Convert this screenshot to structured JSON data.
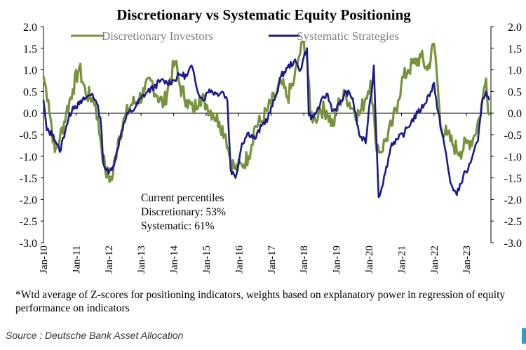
{
  "chart_data": {
    "type": "line",
    "title": "Discretionary  vs Systematic Equity Positioning",
    "ylim": [
      -3.0,
      2.0
    ],
    "yticks": [
      "2.0",
      "1.5",
      "1.0",
      "0.5",
      "0.0",
      "-0.5",
      "-1.0",
      "-1.5",
      "-2.0",
      "-2.5",
      "-3.0"
    ],
    "ytick_values": [
      2.0,
      1.5,
      1.0,
      0.5,
      0.0,
      -0.5,
      -1.0,
      -1.5,
      -2.0,
      -2.5,
      -3.0
    ],
    "x_start": 2010.0,
    "x_end": 2023.75,
    "xticks": [
      "Jan-10",
      "Jan-11",
      "Jan-12",
      "Jan-13",
      "Jan-14",
      "Jan-15",
      "Jan-16",
      "Jan-17",
      "Jan-18",
      "Jan-19",
      "Jan-20",
      "Jan-21",
      "Jan-22",
      "Jan-23"
    ],
    "xtick_values": [
      2010,
      2011,
      2012,
      2013,
      2014,
      2015,
      2016,
      2017,
      2018,
      2019,
      2020,
      2021,
      2022,
      2023
    ],
    "legend_position": "top",
    "grid": false,
    "series": [
      {
        "name": "Discretionary Investors",
        "color": "#77933c",
        "x": [
          2010.0,
          2010.15,
          2010.35,
          2010.5,
          2010.7,
          2010.9,
          2011.1,
          2011.3,
          2011.5,
          2011.6,
          2011.75,
          2011.9,
          2012.1,
          2012.3,
          2012.5,
          2012.7,
          2012.9,
          2013.1,
          2013.3,
          2013.5,
          2013.7,
          2013.9,
          2014.05,
          2014.2,
          2014.4,
          2014.6,
          2014.8,
          2015.0,
          2015.2,
          2015.4,
          2015.6,
          2015.75,
          2015.9,
          2016.1,
          2016.3,
          2016.5,
          2016.7,
          2016.9,
          2017.1,
          2017.3,
          2017.5,
          2017.7,
          2017.85,
          2018.0,
          2018.1,
          2018.2,
          2018.35,
          2018.5,
          2018.7,
          2018.9,
          2019.1,
          2019.3,
          2019.5,
          2019.7,
          2019.9,
          2020.05,
          2020.2,
          2020.35,
          2020.5,
          2020.7,
          2020.9,
          2021.0,
          2021.2,
          2021.4,
          2021.6,
          2021.8,
          2022.0,
          2022.05,
          2022.2,
          2022.4,
          2022.6,
          2022.8,
          2023.0,
          2023.2,
          2023.4,
          2023.5,
          2023.6,
          2023.7
        ],
        "values": [
          0.85,
          0.3,
          -0.9,
          -0.6,
          0.0,
          0.55,
          1.05,
          0.45,
          0.35,
          0.2,
          -0.6,
          -1.35,
          -1.55,
          -0.6,
          -0.1,
          0.2,
          0.3,
          0.5,
          0.75,
          0.4,
          0.2,
          0.8,
          1.2,
          0.6,
          0.3,
          0.05,
          0.4,
          0.2,
          0.0,
          -0.2,
          -0.5,
          -1.1,
          -1.3,
          -1.2,
          -1.0,
          -0.3,
          -0.2,
          0.1,
          0.35,
          0.7,
          0.35,
          0.75,
          1.3,
          1.65,
          1.3,
          0.0,
          -0.15,
          0.1,
          0.05,
          -0.3,
          0.3,
          0.4,
          0.1,
          -0.05,
          0.35,
          0.75,
          -0.6,
          -0.9,
          -0.65,
          -0.3,
          0.3,
          0.7,
          1.0,
          1.15,
          1.3,
          1.0,
          1.6,
          1.3,
          -0.3,
          -0.5,
          -0.75,
          -0.9,
          -0.7,
          -0.6,
          -0.1,
          0.35,
          0.8,
          -0.05
        ]
      },
      {
        "name": "Systematic Strategies",
        "color": "#1a1a8c",
        "x": [
          2010.0,
          2010.1,
          2010.3,
          2010.5,
          2010.7,
          2010.9,
          2011.1,
          2011.3,
          2011.5,
          2011.6,
          2011.75,
          2011.85,
          2012.0,
          2012.2,
          2012.4,
          2012.6,
          2012.8,
          2013.0,
          2013.2,
          2013.4,
          2013.6,
          2013.8,
          2014.0,
          2014.2,
          2014.4,
          2014.55,
          2014.7,
          2014.9,
          2015.1,
          2015.3,
          2015.5,
          2015.65,
          2015.75,
          2015.9,
          2016.1,
          2016.3,
          2016.5,
          2016.7,
          2016.9,
          2017.1,
          2017.3,
          2017.5,
          2017.7,
          2017.9,
          2018.0,
          2018.1,
          2018.15,
          2018.3,
          2018.5,
          2018.7,
          2018.9,
          2019.1,
          2019.3,
          2019.5,
          2019.7,
          2019.9,
          2020.0,
          2020.08,
          2020.15,
          2020.2,
          2020.3,
          2020.5,
          2020.7,
          2020.9,
          2021.1,
          2021.3,
          2021.5,
          2021.7,
          2021.9,
          2022.0,
          2022.1,
          2022.3,
          2022.5,
          2022.7,
          2022.9,
          2023.05,
          2023.2,
          2023.35,
          2023.5,
          2023.6,
          2023.7
        ],
        "values": [
          0.3,
          -0.4,
          -0.5,
          -0.9,
          -0.3,
          0.15,
          0.2,
          0.35,
          0.45,
          0.3,
          -0.1,
          -1.2,
          -1.4,
          -1.1,
          -0.4,
          0.0,
          0.1,
          0.35,
          0.5,
          0.6,
          0.75,
          0.7,
          0.75,
          0.9,
          0.85,
          1.1,
          0.6,
          0.3,
          0.55,
          0.45,
          0.5,
          0.3,
          -1.3,
          -1.5,
          -0.7,
          -0.45,
          -0.6,
          -0.3,
          -0.1,
          0.3,
          0.85,
          1.05,
          1.2,
          1.0,
          1.3,
          1.5,
          -0.05,
          -0.1,
          0.2,
          0.45,
          0.05,
          0.2,
          0.5,
          0.35,
          -0.5,
          -0.7,
          0.1,
          0.45,
          1.1,
          0.0,
          -1.95,
          -1.4,
          -0.7,
          -0.6,
          -0.45,
          -0.2,
          0.0,
          0.2,
          0.5,
          0.7,
          0.1,
          -0.65,
          -1.6,
          -1.9,
          -1.45,
          -1.3,
          -0.95,
          -0.65,
          0.35,
          0.5,
          0.3
        ]
      }
    ],
    "annotation_lines": [
      "Current percentiles",
      "Discretionary: 53%",
      "Systematic: 61%"
    ]
  },
  "footnote": "*Wtd average of Z-scores for positioning indicators, weights based on explanatory power in regression of equity performance on indicators",
  "source": "Source : Deutsche Bank Asset Allocation"
}
